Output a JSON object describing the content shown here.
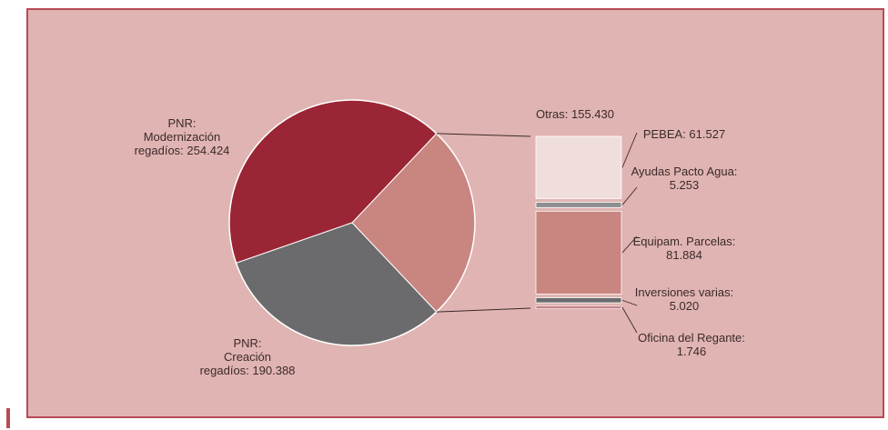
{
  "chart_data": {
    "type": "pie",
    "pie": {
      "slices": [
        {
          "label_lines": [
            "PNR:",
            "Modernización",
            "regadíos: 254.424"
          ],
          "value": 254.424,
          "color": "#9a2535"
        },
        {
          "label_lines": [
            "PNR:",
            "Creación",
            "regadíos: 190.388"
          ],
          "value": 190.388,
          "color": "#6b6b6d"
        },
        {
          "label_lines": [
            "Otras: 155.430"
          ],
          "value": 155.43,
          "color": "#c98580"
        }
      ]
    },
    "breakdown": {
      "title": "Otras: 155.430",
      "parts": [
        {
          "label_lines": [
            "PEBEA: 61.527"
          ],
          "value": 61.527,
          "color": "#f0dedd"
        },
        {
          "label_lines": [
            "Ayudas Pacto Agua:",
            "5.253"
          ],
          "value": 5.253,
          "color": "#8e8e90"
        },
        {
          "label_lines": [
            "Equipam. Parcelas:",
            "81.884"
          ],
          "value": 81.884,
          "color": "#c98580"
        },
        {
          "label_lines": [
            "Inversiones varias:",
            "5.020"
          ],
          "value": 5.02,
          "color": "#6b6b6d"
        },
        {
          "label_lines": [
            "Oficina del Regante:",
            "1.746"
          ],
          "value": 1.746,
          "color": "#9a2535"
        }
      ]
    }
  }
}
